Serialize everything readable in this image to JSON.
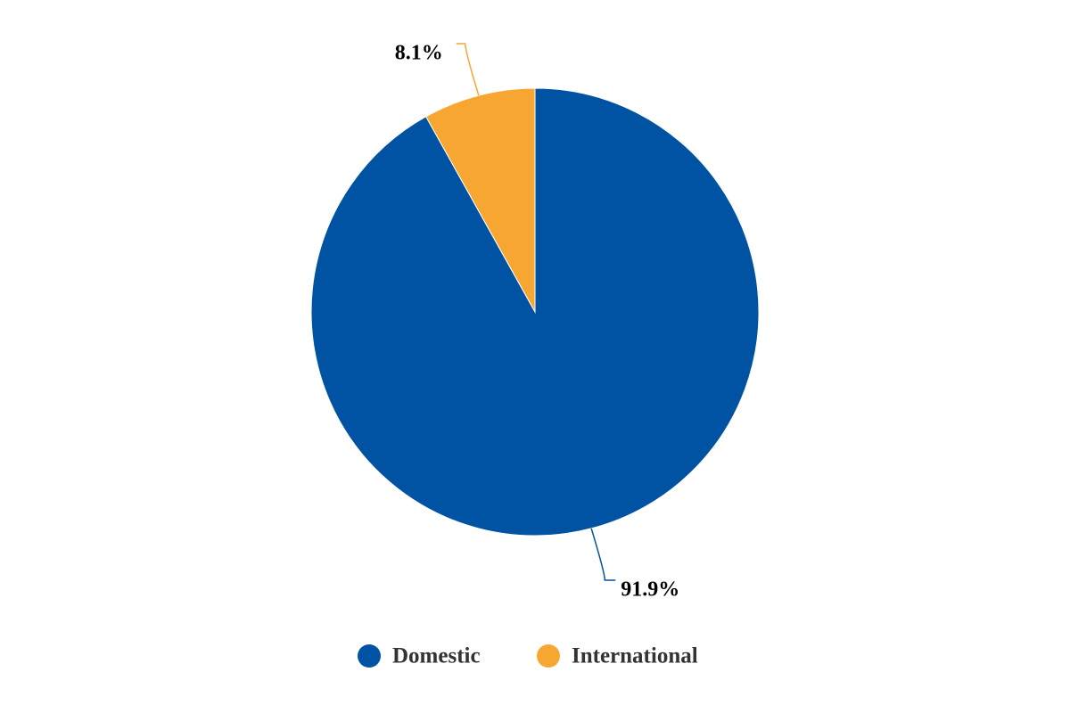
{
  "chart_data": {
    "type": "pie",
    "categories": [
      "Domestic",
      "International"
    ],
    "values": [
      91.9,
      8.1
    ],
    "value_labels": [
      "91.9%",
      "8.1%"
    ],
    "colors": [
      "#0052a2",
      "#f7a631"
    ],
    "legend": "bottom"
  }
}
